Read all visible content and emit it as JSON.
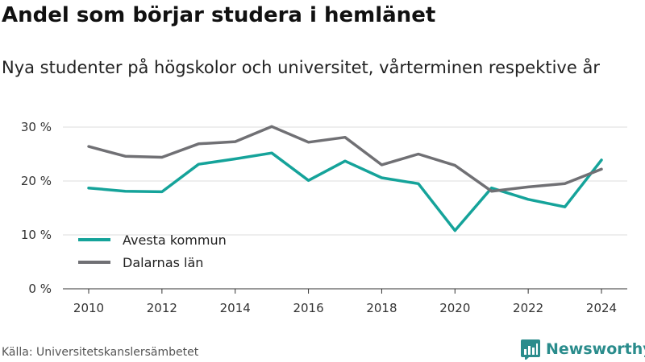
{
  "header": {
    "title": "Andel som börjar studera i hemlänet",
    "subtitle": "Nya studenter på högskolor och universitet, vårterminen respektive år"
  },
  "footer": {
    "source": "Källa: Universitetskanslersämbetet",
    "brand": "Newsworthy",
    "brand_icon": "newsworthy-logo-icon",
    "brand_color": "#2a8c8c"
  },
  "chart_data": {
    "type": "line",
    "x": [
      2010,
      2011,
      2012,
      2013,
      2014,
      2015,
      2016,
      2017,
      2018,
      2019,
      2020,
      2021,
      2022,
      2023,
      2024
    ],
    "xticks": [
      "2010",
      "2012",
      "2014",
      "2016",
      "2018",
      "2020",
      "2022",
      "2024"
    ],
    "yticks": [
      "0 %",
      "10 %",
      "20 %",
      "30 %"
    ],
    "ylim": [
      0,
      30
    ],
    "grid": true,
    "legend_position": "bottom-left",
    "series": [
      {
        "name": "Avesta kommun",
        "color": "#15a39a",
        "values": [
          18.7,
          18.1,
          18.0,
          23.1,
          24.1,
          25.2,
          20.1,
          23.7,
          20.6,
          19.5,
          10.8,
          18.7,
          16.6,
          15.2,
          23.9
        ]
      },
      {
        "name": "Dalarnas län",
        "color": "#707074",
        "values": [
          26.4,
          24.6,
          24.4,
          26.9,
          27.3,
          30.1,
          27.2,
          28.1,
          23.0,
          25.0,
          22.9,
          18.1,
          18.9,
          19.5,
          22.2
        ]
      }
    ]
  }
}
